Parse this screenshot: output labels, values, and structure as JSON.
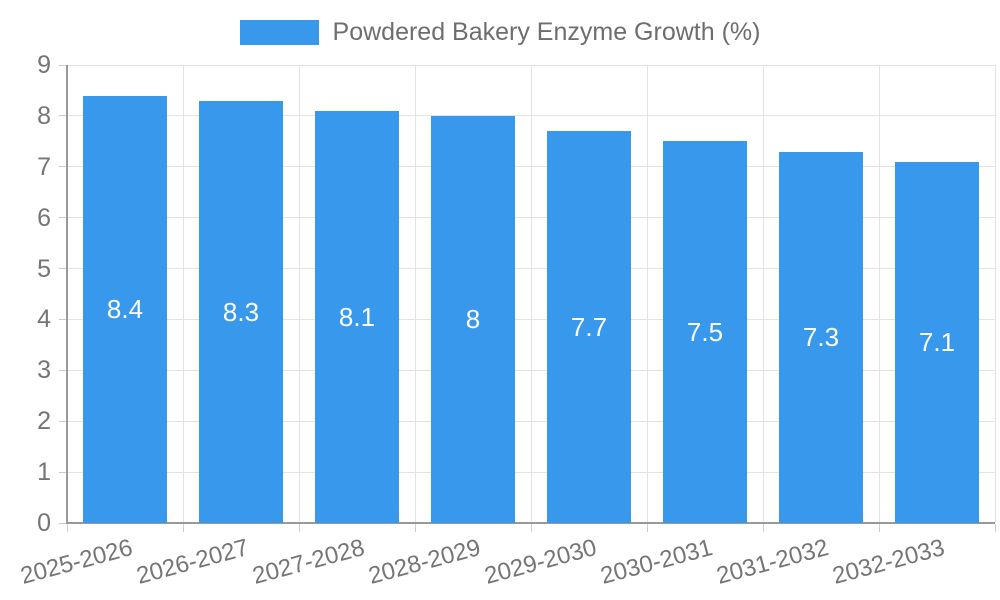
{
  "legend": {
    "items": [
      {
        "label": "Powdered Bakery Enzyme Growth (%)",
        "swatch_color": "#3899EC"
      }
    ]
  },
  "chart_data": {
    "type": "bar",
    "title": "",
    "categories": [
      "2025-2026",
      "2026-2027",
      "2027-2028",
      "2028-2029",
      "2029-2030",
      "2030-2031",
      "2031-2032",
      "2032-2033"
    ],
    "series": [
      {
        "name": "Powdered Bakery Enzyme Growth (%)",
        "color": "#3899EC",
        "values": [
          8.4,
          8.3,
          8.1,
          8,
          7.7,
          7.5,
          7.3,
          7.1
        ]
      }
    ],
    "data_labels": [
      "8.4",
      "8.3",
      "8.1",
      "8",
      "7.7",
      "7.5",
      "7.3",
      "7.1"
    ],
    "xlabel": "",
    "ylabel": "",
    "ylim": [
      0,
      9
    ],
    "yticks": [
      0,
      1,
      2,
      3,
      4,
      5,
      6,
      7,
      8,
      9
    ],
    "x_tick_rotation_deg": -15,
    "grid": true,
    "legend_position": "top",
    "colors": {
      "bar": "#3899EC",
      "grid_line": "#E3E3E3",
      "axis_line": "#999999",
      "tick_mark": "#CCCCCC",
      "axis_text": "#757575",
      "legend_text": "#6E6E6E",
      "data_label_text": "#FFFFFF",
      "background": "#FFFFFF"
    }
  }
}
